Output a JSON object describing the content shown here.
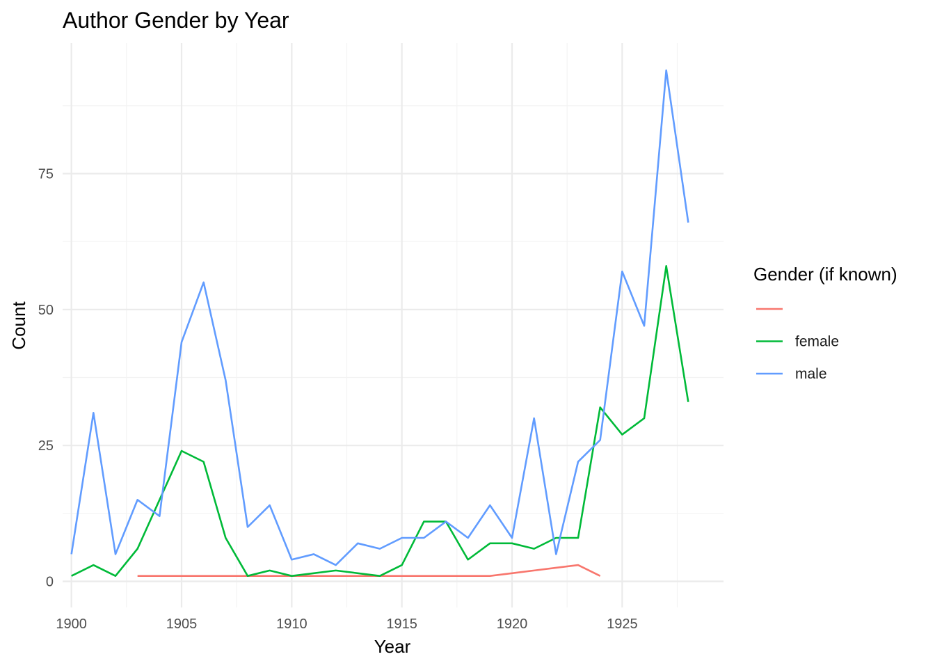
{
  "chart_data": {
    "type": "line",
    "title": "Author Gender by Year",
    "xlabel": "Year",
    "ylabel": "Count",
    "xlim": [
      1899.6,
      1929.6
    ],
    "ylim": [
      -4.8,
      99
    ],
    "x_ticks": [
      1900,
      1905,
      1910,
      1915,
      1920,
      1925
    ],
    "y_ticks": [
      0,
      25,
      50,
      75
    ],
    "grid": true,
    "legend": {
      "title": "Gender (if known)",
      "placement": "right"
    },
    "series": [
      {
        "name": "",
        "color": "#F8766D",
        "x": [
          1903,
          1904,
          1905,
          1906,
          1907,
          1908,
          1909,
          1910,
          1911,
          1912,
          1913,
          1914,
          1915,
          1916,
          1917,
          1918,
          1919,
          1920,
          1921,
          1922,
          1923,
          1924
        ],
        "y": [
          1,
          1,
          1,
          1,
          1,
          1,
          1,
          1,
          1,
          1,
          1,
          1,
          1,
          1,
          1,
          1,
          1,
          1.5,
          2,
          2.5,
          3,
          1
        ]
      },
      {
        "name": "female",
        "color": "#00BA38",
        "x": [
          1900,
          1901,
          1902,
          1903,
          1904,
          1905,
          1906,
          1907,
          1908,
          1909,
          1910,
          1911,
          1912,
          1913,
          1914,
          1915,
          1916,
          1917,
          1918,
          1919,
          1920,
          1921,
          1922,
          1923,
          1924,
          1925,
          1926,
          1927,
          1928
        ],
        "y": [
          1,
          3,
          1,
          6,
          15,
          24,
          22,
          8,
          1,
          2,
          1,
          1.5,
          2,
          1.5,
          1,
          3,
          11,
          11,
          4,
          7,
          7,
          6,
          8,
          8,
          32,
          27,
          30,
          58,
          33
        ]
      },
      {
        "name": "male",
        "color": "#619CFF",
        "x": [
          1900,
          1901,
          1902,
          1903,
          1904,
          1905,
          1906,
          1907,
          1908,
          1909,
          1910,
          1911,
          1912,
          1913,
          1914,
          1915,
          1916,
          1917,
          1918,
          1919,
          1920,
          1921,
          1922,
          1923,
          1924,
          1925,
          1926,
          1927,
          1928
        ],
        "y": [
          5,
          31,
          5,
          15,
          12,
          44,
          55,
          37,
          10,
          14,
          4,
          5,
          3,
          7,
          6,
          8,
          8,
          11,
          8,
          14,
          8,
          30,
          5,
          22,
          26,
          57,
          47,
          94,
          66
        ]
      }
    ]
  }
}
